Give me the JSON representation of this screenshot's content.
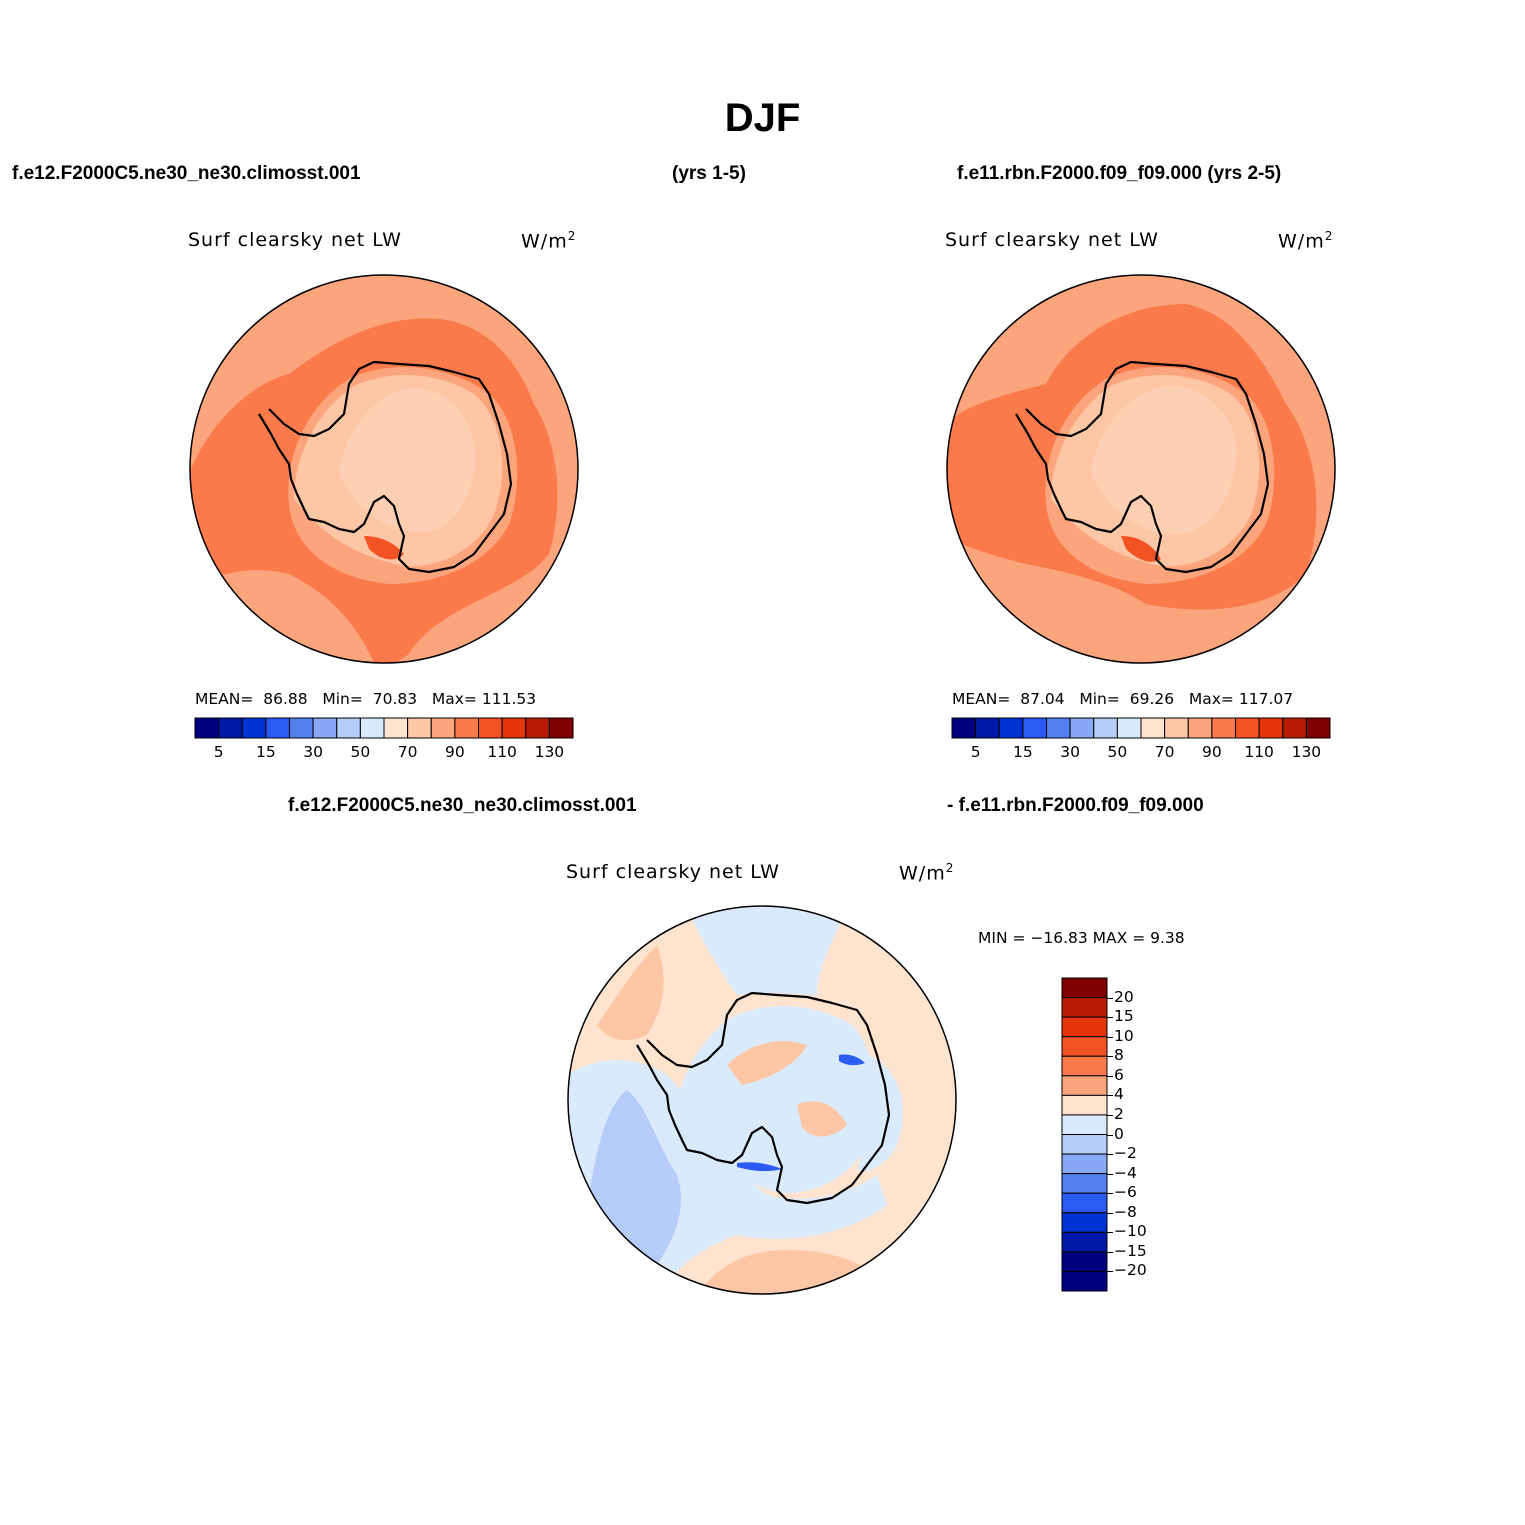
{
  "title": "DJF",
  "header": {
    "left_case": "f.e12.F2000C5.ne30_ne30.climosst.001",
    "years_left": "(yrs 1-5)",
    "right_case": "f.e11.rbn.F2000.f09_f09.000 (yrs 2-5)"
  },
  "diff_header": {
    "left": "f.e12.F2000C5.ne30_ne30.climosst.001",
    "right": "- f.e11.rbn.F2000.f09_f09.000"
  },
  "panels": [
    {
      "variable": "Surf  clearsky  net  LW",
      "units": "W/m",
      "units_sup": "2",
      "stats": {
        "mean_label": "MEAN=",
        "mean": "86.88",
        "min_label": "Min=",
        "min": "70.83",
        "max_label": "Max=",
        "max": "111.53"
      }
    },
    {
      "variable": "Surf  clearsky  net  LW",
      "units": "W/m",
      "units_sup": "2",
      "stats": {
        "mean_label": "MEAN=",
        "mean": "87.04",
        "min_label": "Min=",
        "min": "69.26",
        "max_label": "Max=",
        "max": "117.07"
      }
    }
  ],
  "diff_panel": {
    "variable": "Surf  clearsky  net  LW",
    "units": "W/m",
    "units_sup": "2",
    "minmax_text": "MIN = −16.83 MAX =    9.38"
  },
  "colorbar_abs": {
    "colors": [
      "#00007f",
      "#0019a8",
      "#0033d6",
      "#2a5bf2",
      "#5580f2",
      "#88a8f5",
      "#b5cbf9",
      "#d9eafd",
      "#fee4cf",
      "#fdc6a5",
      "#fca57d",
      "#fa7a4c",
      "#f25224",
      "#e33509",
      "#b81a03",
      "#800000"
    ],
    "tick_labels": [
      "5",
      "15",
      "30",
      "50",
      "70",
      "90",
      "110",
      "130"
    ]
  },
  "colorbar_diff": {
    "colors": [
      "#800000",
      "#b81a03",
      "#e33509",
      "#f25224",
      "#fa7a4c",
      "#fca57d",
      "#fee4cf",
      "#d9eafd",
      "#b5cbf9",
      "#88a8f5",
      "#5580f2",
      "#2a5bf2",
      "#0033d6",
      "#0019a8",
      "#00007f",
      "#00007f"
    ],
    "tick_labels": [
      "20",
      "15",
      "10",
      "8",
      "6",
      "4",
      "2",
      "0",
      "−2",
      "−4",
      "−6",
      "−8",
      "−10",
      "−15",
      "−20"
    ]
  },
  "map_colors": {
    "ice_sheet": "#fdc6a5",
    "ice_core": "#fdd0b3",
    "ocean_mid": "#fca57d",
    "ocean_high": "#fa7a4c",
    "peak": "#f25224",
    "diff_base": "#fee4cf",
    "diff_neg1": "#d9eafd",
    "diff_neg2": "#b5cbf9",
    "diff_pos1": "#fdc6a5",
    "diff_strong_neg": "#2a5bf2"
  }
}
